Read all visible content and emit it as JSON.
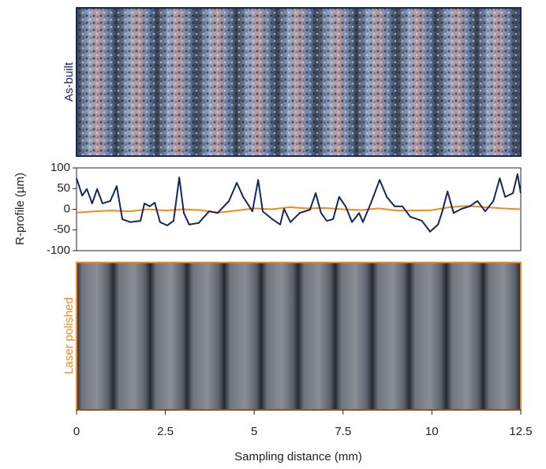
{
  "chart_data": {
    "type": "line",
    "top_panel_label": "As-built",
    "bottom_panel_label": "Laser polished",
    "x_label": "Sampling distance (mm)",
    "y_label": "R-profile (µm)",
    "xlim": [
      0,
      12.5
    ],
    "xticks": [
      0,
      2.5,
      5,
      7.5,
      10,
      12.5
    ],
    "ylim": [
      -100,
      100
    ],
    "yticks": [
      -100,
      -50,
      0,
      50,
      100
    ],
    "series": [
      {
        "name": "As-built",
        "color": "#14275a",
        "x": [
          0,
          0.16,
          0.29,
          0.44,
          0.58,
          0.73,
          0.95,
          1.13,
          1.29,
          1.51,
          1.8,
          1.91,
          2.06,
          2.2,
          2.35,
          2.55,
          2.73,
          2.89,
          3.02,
          3.17,
          3.44,
          3.73,
          3.97,
          4.29,
          4.51,
          4.69,
          4.95,
          5.11,
          5.24,
          5.51,
          5.73,
          5.84,
          6.02,
          6.28,
          6.57,
          6.73,
          6.88,
          7.04,
          7.22,
          7.39,
          7.57,
          7.75,
          7.95,
          8.06,
          8.28,
          8.53,
          8.73,
          8.95,
          9.17,
          9.39,
          9.72,
          9.95,
          10.17,
          10.28,
          10.44,
          10.61,
          10.83,
          11.06,
          11.28,
          11.5,
          11.73,
          11.91,
          12.06,
          12.28,
          12.41,
          12.5
        ],
        "values": [
          75,
          33,
          49,
          14,
          49,
          14,
          20,
          56,
          -24,
          -31,
          -28,
          14,
          7,
          16,
          -31,
          -39,
          -28,
          77,
          -9,
          -37,
          -33,
          -5,
          -9,
          20,
          64,
          30,
          -5,
          71,
          -5,
          -24,
          -37,
          1,
          -31,
          -9,
          -1,
          39,
          -9,
          -28,
          -24,
          30,
          7,
          -31,
          -9,
          -31,
          14,
          71,
          30,
          7,
          7,
          -18,
          -28,
          -54,
          -37,
          -9,
          43,
          -9,
          1,
          7,
          20,
          -5,
          20,
          75,
          30,
          39,
          85,
          39
        ]
      },
      {
        "name": "Laser polished",
        "color": "#f08a1c",
        "x": [
          0,
          0.5,
          1,
          1.5,
          2,
          2.5,
          3,
          3.5,
          4,
          4.5,
          5,
          5.5,
          6,
          6.5,
          7,
          7.5,
          8,
          8.5,
          9,
          9.5,
          10,
          10.5,
          11,
          11.5,
          12,
          12.5
        ],
        "values": [
          -8,
          -5,
          -3,
          -5,
          0,
          -3,
          0,
          -2,
          -8,
          -3,
          2,
          0,
          5,
          2,
          3,
          0,
          -2,
          2,
          -3,
          -3,
          -2,
          5,
          8,
          5,
          2,
          0
        ]
      }
    ]
  }
}
